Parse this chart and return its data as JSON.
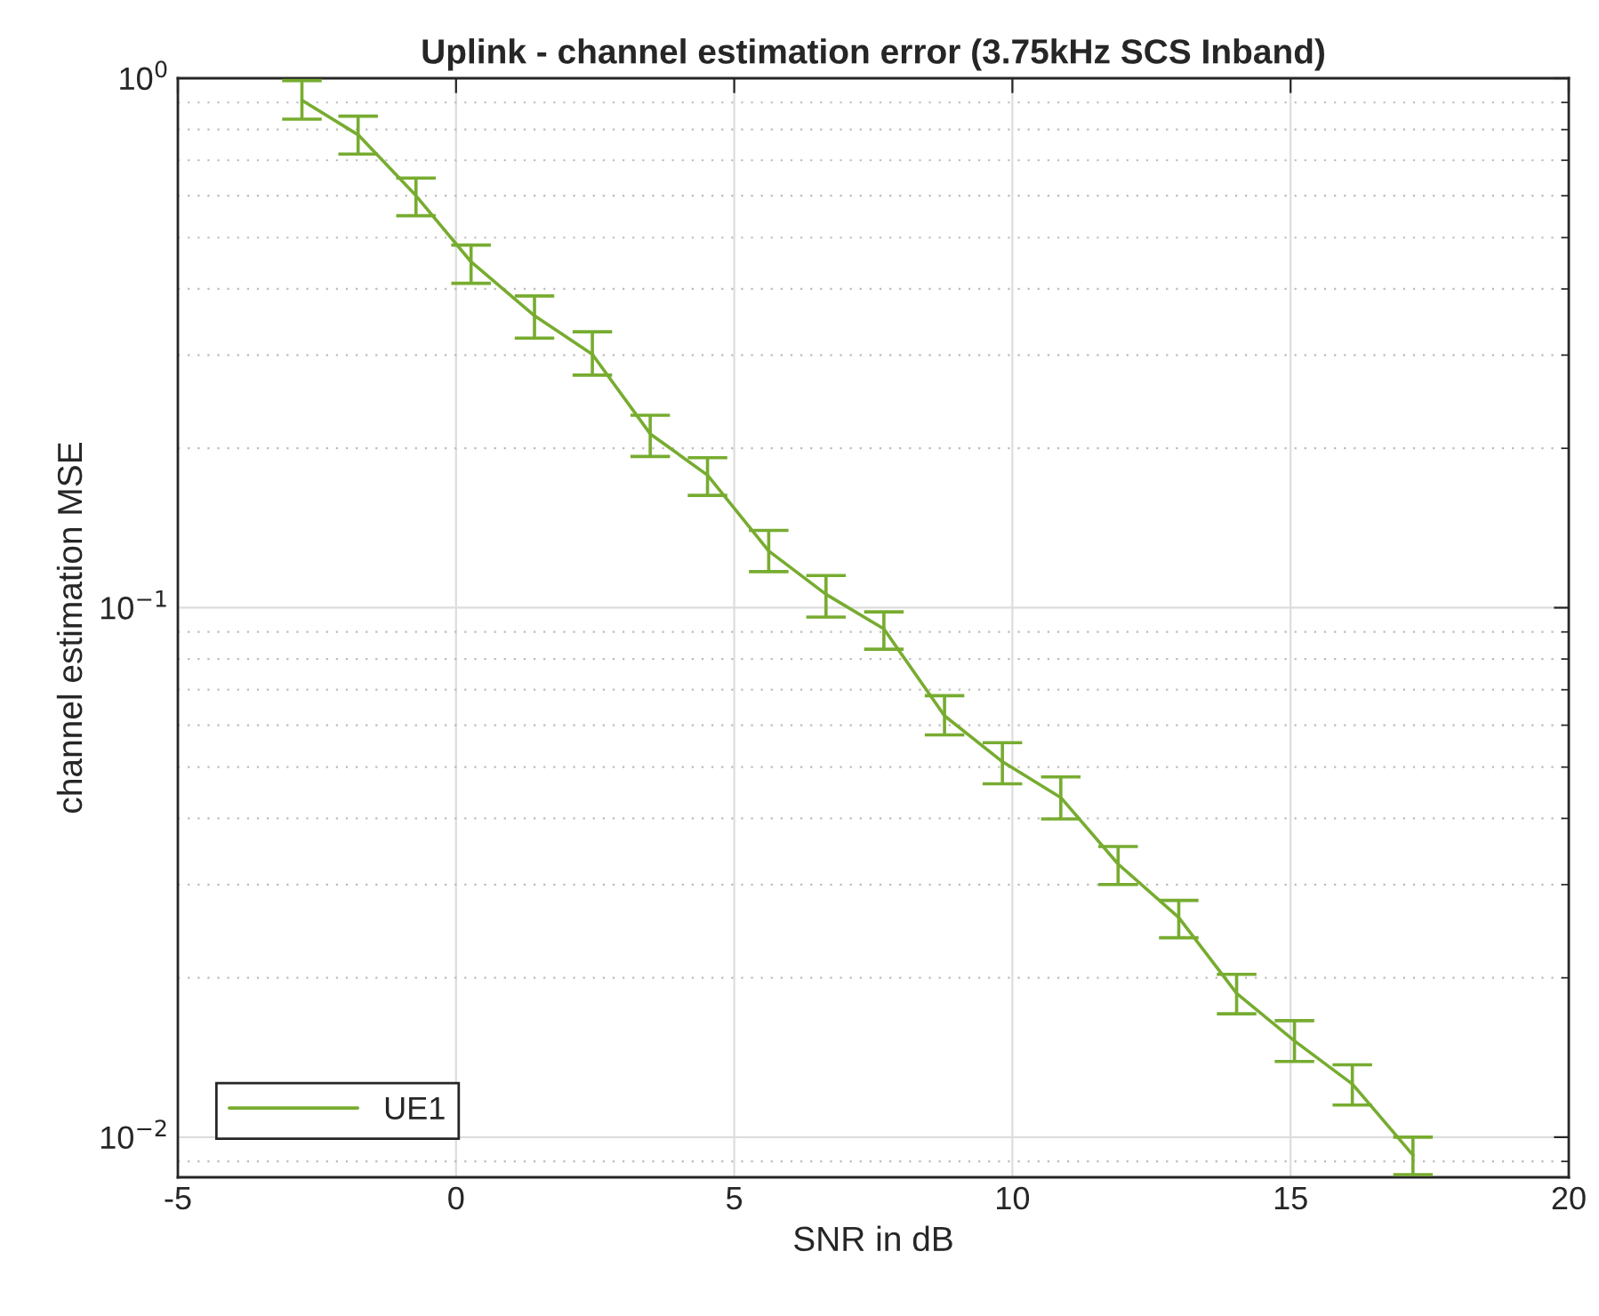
{
  "chart_data": {
    "type": "line",
    "title": "Uplink - channel estimation error (3.75kHz SCS Inband)",
    "xlabel": "SNR in dB",
    "ylabel": "channel estimation MSE",
    "x": [
      -2.77,
      -1.76,
      -0.72,
      0.27,
      1.41,
      2.45,
      3.49,
      4.52,
      5.62,
      6.65,
      7.69,
      8.78,
      9.82,
      10.87,
      11.9,
      12.99,
      14.03,
      15.07,
      16.11,
      17.2
    ],
    "series": [
      {
        "name": "UE1",
        "color": "#77ac30",
        "values": [
          0.909,
          0.782,
          0.6,
          0.45,
          0.356,
          0.301,
          0.213,
          0.178,
          0.128,
          0.106,
          0.0912,
          0.0625,
          0.0512,
          0.0438,
          0.0328,
          0.026,
          0.0187,
          0.0152,
          0.0126,
          0.00925
        ],
        "errors": [
          [
            0.837,
            0.99
          ],
          [
            0.719,
            0.848
          ],
          [
            0.55,
            0.648
          ],
          [
            0.41,
            0.484
          ],
          [
            0.323,
            0.388
          ],
          [
            0.275,
            0.332
          ],
          [
            0.193,
            0.231
          ],
          [
            0.163,
            0.192
          ],
          [
            0.117,
            0.14
          ],
          [
            0.096,
            0.115
          ],
          [
            0.0835,
            0.0982
          ],
          [
            0.0575,
            0.0682
          ],
          [
            0.0465,
            0.0556
          ],
          [
            0.0399,
            0.0479
          ],
          [
            0.03,
            0.0354
          ],
          [
            0.0238,
            0.028
          ],
          [
            0.0171,
            0.0203
          ],
          [
            0.0139,
            0.0166
          ],
          [
            0.0115,
            0.0137
          ],
          [
            0.0085,
            0.01
          ]
        ]
      }
    ],
    "log": "y",
    "xlim": [
      -5,
      20
    ],
    "xticks": [
      -5,
      0,
      5,
      10,
      15,
      20
    ],
    "ylim": [
      0.0084,
      1
    ],
    "yticks": [
      {
        "value": 0.01,
        "label": "10$^{−2}$"
      },
      {
        "value": 0.1,
        "label": "10$^{−1}$"
      },
      {
        "value": 1,
        "label": "10$^{0}$"
      }
    ],
    "grid": true,
    "legend": "bottom left",
    "marker": "none",
    "line_style": "solid"
  }
}
